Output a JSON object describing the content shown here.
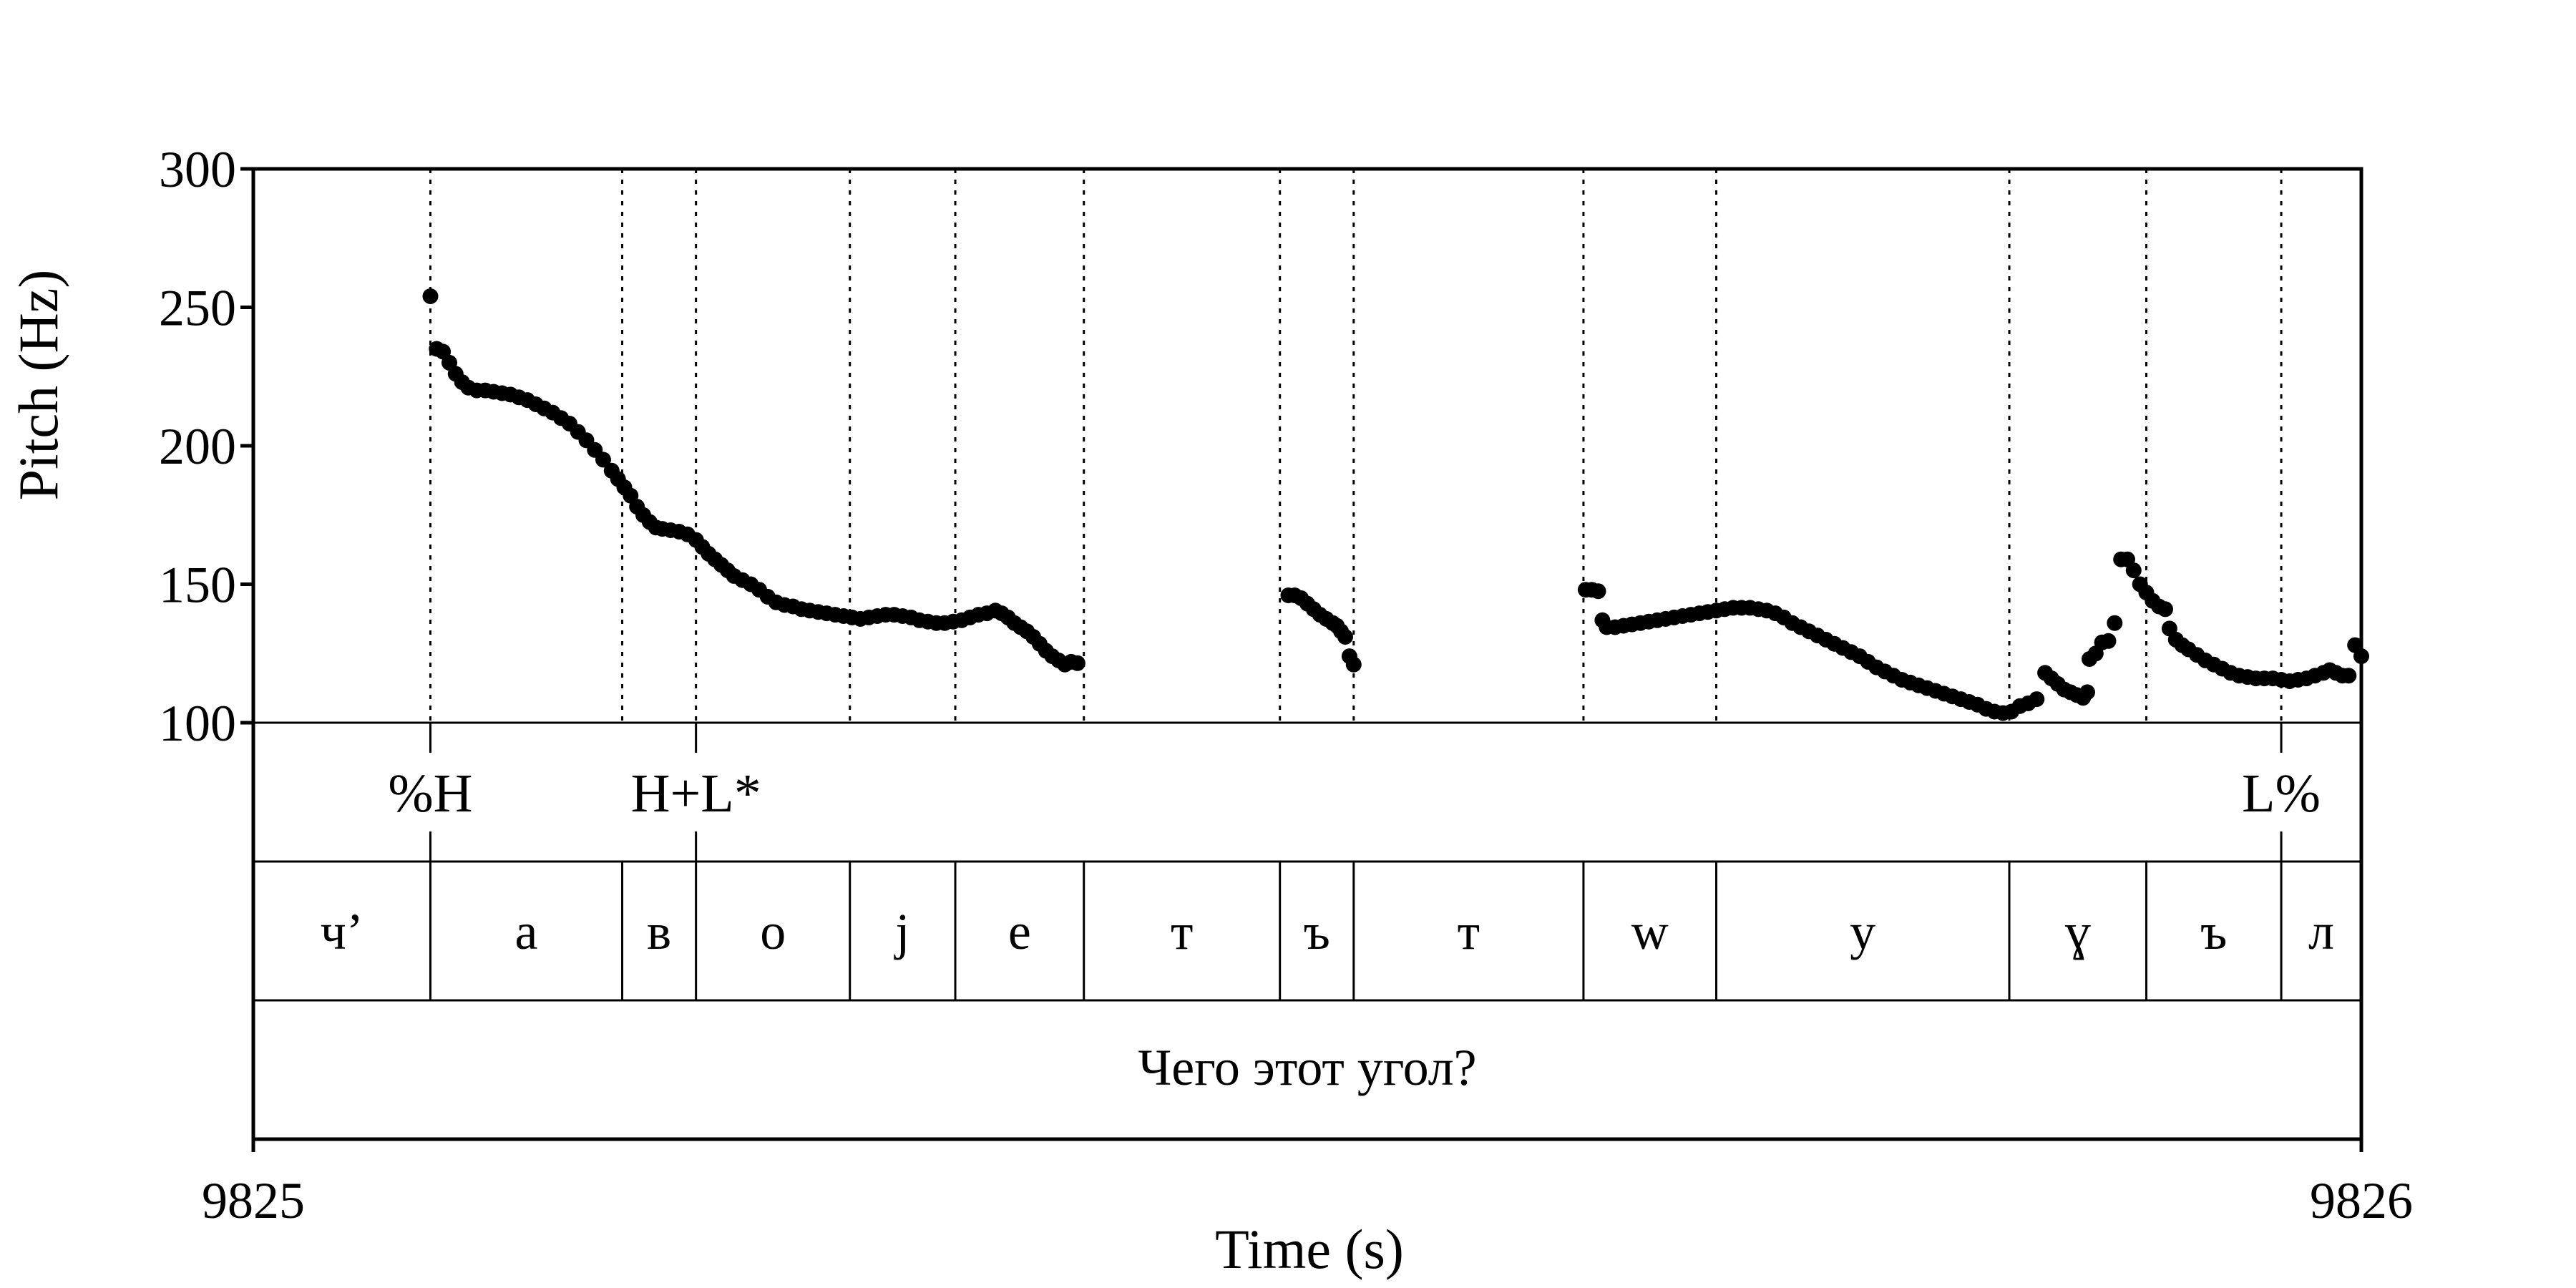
{
  "chart_data": {
    "type": "scatter",
    "xlabel": "Time (s)",
    "ylabel": "Pitch (Hz)",
    "xlim": [
      9825,
      9826
    ],
    "ylim": [
      100,
      300
    ],
    "y_ticks": [
      "100",
      "150",
      "200",
      "250",
      "300"
    ],
    "x_ticks": [
      "9825",
      "9826"
    ],
    "boundaries": [
      0.084,
      0.175,
      0.21,
      0.283,
      0.333,
      0.394,
      0.487,
      0.522,
      0.631,
      0.694,
      0.833,
      0.898,
      0.962
    ],
    "tones": [
      {
        "t": 0.084,
        "label": "%H"
      },
      {
        "t": 0.21,
        "label": "H+L*"
      },
      {
        "t": 0.962,
        "label": "L%"
      }
    ],
    "segments": [
      {
        "start": 0.0,
        "end": 0.084,
        "label": "ч’"
      },
      {
        "start": 0.084,
        "end": 0.175,
        "label": "а"
      },
      {
        "start": 0.175,
        "end": 0.21,
        "label": "в"
      },
      {
        "start": 0.21,
        "end": 0.283,
        "label": "о"
      },
      {
        "start": 0.283,
        "end": 0.333,
        "label": "j"
      },
      {
        "start": 0.333,
        "end": 0.394,
        "label": "е"
      },
      {
        "start": 0.394,
        "end": 0.487,
        "label": "т"
      },
      {
        "start": 0.487,
        "end": 0.522,
        "label": "ъ"
      },
      {
        "start": 0.522,
        "end": 0.631,
        "label": "т"
      },
      {
        "start": 0.631,
        "end": 0.694,
        "label": "w"
      },
      {
        "start": 0.694,
        "end": 0.833,
        "label": "у"
      },
      {
        "start": 0.833,
        "end": 0.898,
        "label": "ɣ"
      },
      {
        "start": 0.898,
        "end": 0.962,
        "label": "ъ"
      },
      {
        "start": 0.962,
        "end": 1.0,
        "label": "л"
      }
    ],
    "phrase": "Чего этот угол?",
    "pitch_points": [
      [
        0.084,
        254
      ],
      [
        0.087,
        235
      ],
      [
        0.09,
        234
      ],
      [
        0.093,
        230
      ],
      [
        0.096,
        226
      ],
      [
        0.099,
        223
      ],
      [
        0.102,
        221
      ],
      [
        0.106,
        220
      ],
      [
        0.11,
        220
      ],
      [
        0.114,
        219.5
      ],
      [
        0.118,
        219
      ],
      [
        0.122,
        218.5
      ],
      [
        0.126,
        217.5
      ],
      [
        0.13,
        216.5
      ],
      [
        0.134,
        215
      ],
      [
        0.138,
        213.5
      ],
      [
        0.142,
        212
      ],
      [
        0.146,
        210
      ],
      [
        0.15,
        208
      ],
      [
        0.154,
        205
      ],
      [
        0.158,
        202
      ],
      [
        0.162,
        198.5
      ],
      [
        0.166,
        195
      ],
      [
        0.17,
        191
      ],
      [
        0.173,
        188
      ],
      [
        0.176,
        185
      ],
      [
        0.179,
        182
      ],
      [
        0.182,
        178
      ],
      [
        0.185,
        175
      ],
      [
        0.188,
        172.5
      ],
      [
        0.191,
        170.5
      ],
      [
        0.194,
        170
      ],
      [
        0.198,
        169.5
      ],
      [
        0.202,
        169
      ],
      [
        0.206,
        168
      ],
      [
        0.21,
        166
      ],
      [
        0.213,
        163.5
      ],
      [
        0.216,
        161
      ],
      [
        0.219,
        159
      ],
      [
        0.222,
        157
      ],
      [
        0.225,
        155
      ],
      [
        0.228,
        153
      ],
      [
        0.232,
        151.5
      ],
      [
        0.236,
        150
      ],
      [
        0.24,
        148
      ],
      [
        0.244,
        145.5
      ],
      [
        0.248,
        143.5
      ],
      [
        0.252,
        142.5
      ],
      [
        0.256,
        142
      ],
      [
        0.26,
        141
      ],
      [
        0.264,
        140.5
      ],
      [
        0.268,
        140
      ],
      [
        0.272,
        139.5
      ],
      [
        0.276,
        139
      ],
      [
        0.28,
        138.5
      ],
      [
        0.284,
        138
      ],
      [
        0.288,
        137.5
      ],
      [
        0.292,
        138
      ],
      [
        0.296,
        138.5
      ],
      [
        0.3,
        139
      ],
      [
        0.304,
        139
      ],
      [
        0.308,
        138.5
      ],
      [
        0.312,
        138
      ],
      [
        0.316,
        137
      ],
      [
        0.32,
        136.5
      ],
      [
        0.324,
        136
      ],
      [
        0.328,
        136
      ],
      [
        0.332,
        136.5
      ],
      [
        0.336,
        137
      ],
      [
        0.34,
        138
      ],
      [
        0.344,
        139
      ],
      [
        0.348,
        139.5
      ],
      [
        0.352,
        140.5
      ],
      [
        0.355,
        139.5
      ],
      [
        0.358,
        138
      ],
      [
        0.361,
        136
      ],
      [
        0.364,
        134.5
      ],
      [
        0.367,
        133
      ],
      [
        0.37,
        131
      ],
      [
        0.373,
        128.5
      ],
      [
        0.376,
        126
      ],
      [
        0.379,
        124
      ],
      [
        0.382,
        122.5
      ],
      [
        0.385,
        121
      ],
      [
        0.388,
        122
      ],
      [
        0.391,
        121.5
      ],
      [
        0.491,
        146
      ],
      [
        0.494,
        146
      ],
      [
        0.497,
        145
      ],
      [
        0.5,
        143
      ],
      [
        0.503,
        141
      ],
      [
        0.506,
        139
      ],
      [
        0.509,
        137.5
      ],
      [
        0.512,
        136
      ],
      [
        0.514,
        135
      ],
      [
        0.516,
        133
      ],
      [
        0.518,
        131
      ],
      [
        0.52,
        124
      ],
      [
        0.522,
        121
      ],
      [
        0.632,
        148
      ],
      [
        0.635,
        148
      ],
      [
        0.638,
        147.5
      ],
      [
        0.64,
        137
      ],
      [
        0.642,
        134.5
      ],
      [
        0.646,
        134.5
      ],
      [
        0.65,
        135
      ],
      [
        0.654,
        135.5
      ],
      [
        0.658,
        136
      ],
      [
        0.662,
        136.5
      ],
      [
        0.666,
        137
      ],
      [
        0.67,
        137.5
      ],
      [
        0.674,
        138
      ],
      [
        0.678,
        138.5
      ],
      [
        0.682,
        139
      ],
      [
        0.686,
        139.5
      ],
      [
        0.69,
        140
      ],
      [
        0.694,
        140.5
      ],
      [
        0.698,
        141
      ],
      [
        0.702,
        141.5
      ],
      [
        0.706,
        141.5
      ],
      [
        0.71,
        141.5
      ],
      [
        0.714,
        141
      ],
      [
        0.718,
        140.5
      ],
      [
        0.722,
        139.5
      ],
      [
        0.726,
        138
      ],
      [
        0.73,
        136
      ],
      [
        0.734,
        134.5
      ],
      [
        0.738,
        133
      ],
      [
        0.742,
        131.5
      ],
      [
        0.746,
        130
      ],
      [
        0.75,
        128.5
      ],
      [
        0.754,
        127
      ],
      [
        0.758,
        125.5
      ],
      [
        0.762,
        124
      ],
      [
        0.766,
        122
      ],
      [
        0.77,
        120
      ],
      [
        0.774,
        118.5
      ],
      [
        0.778,
        117
      ],
      [
        0.782,
        115.5
      ],
      [
        0.786,
        114.5
      ],
      [
        0.79,
        113.5
      ],
      [
        0.794,
        112.5
      ],
      [
        0.798,
        111.5
      ],
      [
        0.802,
        110.5
      ],
      [
        0.806,
        109.5
      ],
      [
        0.81,
        108.5
      ],
      [
        0.814,
        107.5
      ],
      [
        0.818,
        106.5
      ],
      [
        0.822,
        105
      ],
      [
        0.826,
        104
      ],
      [
        0.83,
        103.5
      ],
      [
        0.834,
        104
      ],
      [
        0.838,
        106
      ],
      [
        0.842,
        107
      ],
      [
        0.846,
        108.5
      ],
      [
        0.85,
        118
      ],
      [
        0.853,
        116
      ],
      [
        0.856,
        114
      ],
      [
        0.859,
        112
      ],
      [
        0.862,
        111
      ],
      [
        0.865,
        110
      ],
      [
        0.868,
        109
      ],
      [
        0.87,
        111
      ],
      [
        0.871,
        123
      ],
      [
        0.874,
        125
      ],
      [
        0.877,
        129
      ],
      [
        0.88,
        129.5
      ],
      [
        0.883,
        136
      ],
      [
        0.886,
        159
      ],
      [
        0.889,
        159
      ],
      [
        0.892,
        155
      ],
      [
        0.895,
        150
      ],
      [
        0.898,
        147
      ],
      [
        0.901,
        144
      ],
      [
        0.904,
        142
      ],
      [
        0.907,
        141
      ],
      [
        0.909,
        134
      ],
      [
        0.912,
        130
      ],
      [
        0.915,
        128
      ],
      [
        0.918,
        126.5
      ],
      [
        0.922,
        124.5
      ],
      [
        0.926,
        122.5
      ],
      [
        0.93,
        121
      ],
      [
        0.934,
        119.5
      ],
      [
        0.938,
        118
      ],
      [
        0.942,
        117
      ],
      [
        0.946,
        116.5
      ],
      [
        0.95,
        116
      ],
      [
        0.954,
        116
      ],
      [
        0.958,
        116
      ],
      [
        0.962,
        115.5
      ],
      [
        0.966,
        115
      ],
      [
        0.97,
        115.5
      ],
      [
        0.974,
        116
      ],
      [
        0.978,
        117
      ],
      [
        0.982,
        118
      ],
      [
        0.985,
        119
      ],
      [
        0.988,
        118
      ],
      [
        0.991,
        117
      ],
      [
        0.994,
        117
      ],
      [
        0.997,
        128
      ],
      [
        1.0,
        124
      ]
    ]
  }
}
